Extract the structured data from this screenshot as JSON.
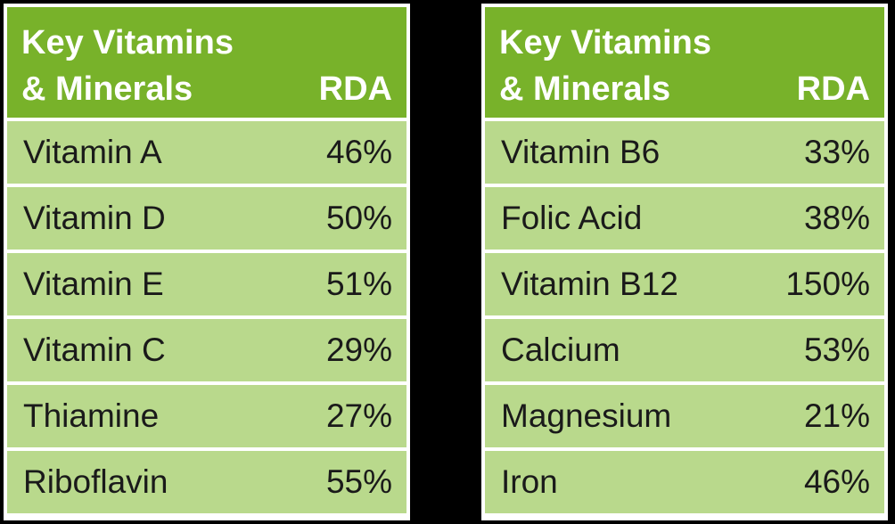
{
  "tables": [
    {
      "header": {
        "line1": "Key Vitamins",
        "line2": "& Minerals",
        "rda": "RDA"
      },
      "rows": [
        {
          "name": "Vitamin A",
          "value": "46%"
        },
        {
          "name": "Vitamin D",
          "value": "50%"
        },
        {
          "name": "Vitamin E",
          "value": "51%"
        },
        {
          "name": "Vitamin C",
          "value": "29%"
        },
        {
          "name": "Thiamine",
          "value": "27%"
        },
        {
          "name": "Riboflavin",
          "value": "55%"
        }
      ]
    },
    {
      "header": {
        "line1": "Key Vitamins",
        "line2": "& Minerals",
        "rda": "RDA"
      },
      "rows": [
        {
          "name": "Vitamin B6",
          "value": "33%"
        },
        {
          "name": "Folic Acid",
          "value": "38%"
        },
        {
          "name": "Vitamin B12",
          "value": "150%"
        },
        {
          "name": "Calcium",
          "value": "53%"
        },
        {
          "name": "Magnesium",
          "value": "21%"
        },
        {
          "name": "Iron",
          "value": "46%"
        }
      ]
    }
  ],
  "colors": {
    "header_green": "#78b22a",
    "row_green": "#b9d98c",
    "background": "#000000",
    "panel": "#ffffff"
  }
}
